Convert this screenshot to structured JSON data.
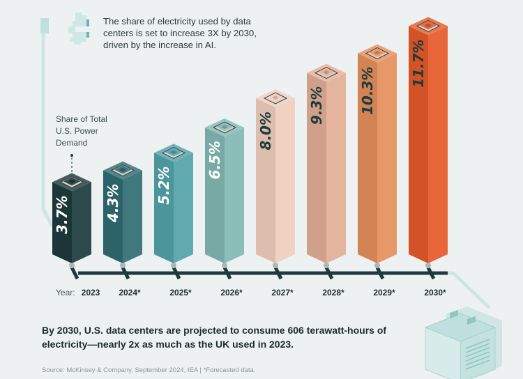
{
  "intro_text": "The share of electricity used by data centers is set to increase 3X by 2030, driven by the increase in AI.",
  "y_label": "Share of Total U.S. Power Demand",
  "summary": "By 2030, U.S. data centers are projected to consume 606 terawatt-hours of electricity—nearly 2x as much as the UK used in 2023.",
  "source": "Source: McKinsey & Company, September 2024, IEA | *Forecasted data.",
  "icons": [
    "pixel-pacman-icon",
    "chip-icon",
    "server-rack-icon"
  ],
  "chart_data": {
    "type": "bar",
    "x_prefix": "Year:",
    "categories": [
      "2023",
      "2024*",
      "2025*",
      "2026*",
      "2027*",
      "2028*",
      "2029*",
      "2030*"
    ],
    "values": [
      3.7,
      4.3,
      5.2,
      6.5,
      8.0,
      9.3,
      10.3,
      11.7
    ],
    "value_labels": [
      "3.7%",
      "4.3%",
      "5.2%",
      "6.5%",
      "8.0%",
      "9.3%",
      "10.3%",
      "11.7%"
    ],
    "ylabel": "Share of Total U.S. Power Demand",
    "unit": "%",
    "grid": false,
    "colors": [
      "#1d3a3d",
      "#2f6c72",
      "#52a2a8",
      "#82b8b3",
      "#f0cdbd",
      "#e3ae96",
      "#e58f5c",
      "#e55a2a"
    ]
  }
}
